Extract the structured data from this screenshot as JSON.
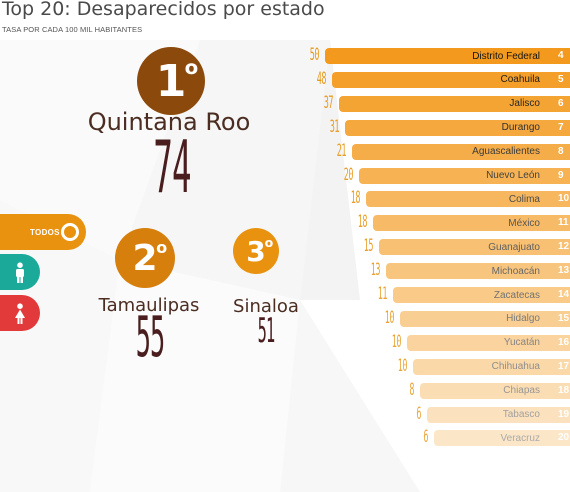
{
  "header": {
    "title": "Top 20: Desaparecidos por estado",
    "subtitle": "TASA POR CADA 100 MIL HABITANTES"
  },
  "colors": {
    "brown": "#8b4a0c",
    "orange": "#e8920f",
    "teal": "#1ba99a",
    "red": "#e23a3a",
    "value_dark": "#4a1e1e",
    "bar_top": "#f39a1e"
  },
  "podium": {
    "first": {
      "rank": "1",
      "ordinal": "o",
      "state": "Quintana Roo",
      "value": "74"
    },
    "second": {
      "rank": "2",
      "ordinal": "o",
      "state": "Tamaulipas",
      "value": "55"
    },
    "third": {
      "rank": "3",
      "ordinal": "o",
      "state": "Sinaloa",
      "value": "51"
    }
  },
  "filters": {
    "todos": {
      "label": "TODOS",
      "icon": "selected-circle-icon"
    },
    "male": {
      "icon": "male-person-icon"
    },
    "female": {
      "icon": "female-person-icon"
    }
  },
  "ranking": [
    {
      "value": "50",
      "state": "Distrito Federal",
      "rank": "4"
    },
    {
      "value": "48",
      "state": "Coahuila",
      "rank": "5"
    },
    {
      "value": "37",
      "state": "Jalisco",
      "rank": "6"
    },
    {
      "value": "31",
      "state": "Durango",
      "rank": "7"
    },
    {
      "value": "21",
      "state": "Aguascalientes",
      "rank": "8"
    },
    {
      "value": "20",
      "state": "Nuevo León",
      "rank": "9"
    },
    {
      "value": "18",
      "state": "Colima",
      "rank": "10"
    },
    {
      "value": "18",
      "state": "México",
      "rank": "11"
    },
    {
      "value": "15",
      "state": "Guanajuato",
      "rank": "12"
    },
    {
      "value": "13",
      "state": "Michoacán",
      "rank": "13"
    },
    {
      "value": "11",
      "state": "Zacatecas",
      "rank": "14"
    },
    {
      "value": "10",
      "state": "Hidalgo",
      "rank": "15"
    },
    {
      "value": "10",
      "state": "Yucatán",
      "rank": "16"
    },
    {
      "value": "10",
      "state": "Chihuahua",
      "rank": "17"
    },
    {
      "value": "8",
      "state": "Chiapas",
      "rank": "18"
    },
    {
      "value": "6",
      "state": "Tabasco",
      "rank": "19"
    },
    {
      "value": "6",
      "state": "Veracruz",
      "rank": "20"
    }
  ]
}
